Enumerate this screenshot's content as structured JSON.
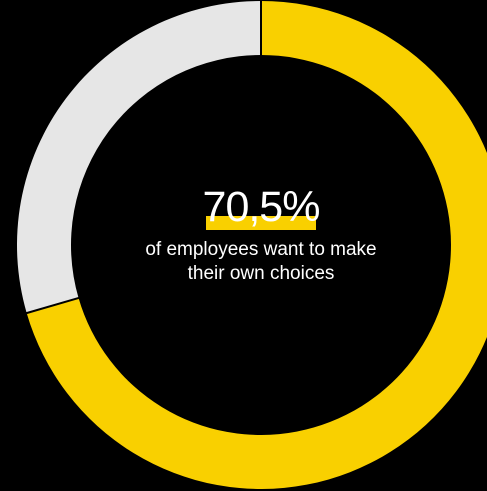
{
  "chart_data": {
    "type": "pie",
    "style": "donut",
    "slices": [
      {
        "value": 70.5,
        "color": "#f9d000"
      },
      {
        "value": 29.5,
        "color": "#e6e6e6"
      }
    ],
    "start": "top",
    "direction": "clockwise",
    "center_value": "70,5%",
    "center_caption": "of employees want to make their own choices"
  },
  "colors": {
    "background": "#000000",
    "accent": "#f9d000",
    "remainder": "#e6e6e6",
    "text": "#ffffff"
  }
}
